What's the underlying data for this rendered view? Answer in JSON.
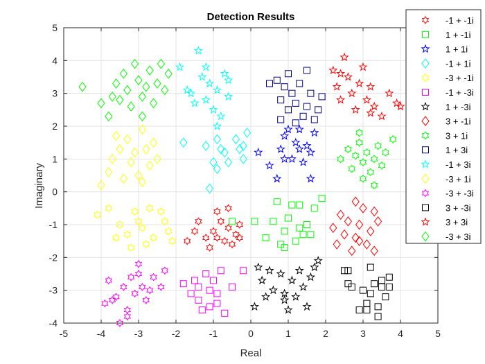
{
  "chart_data": {
    "type": "scatter",
    "title": "Detection Results",
    "xlabel": "Real",
    "ylabel": "Imaginary",
    "xlim": [
      -5,
      5
    ],
    "ylim": [
      -4,
      5
    ],
    "xticks": [
      "-5",
      "-4",
      "-3",
      "-2",
      "-1",
      "0",
      "1",
      "2",
      "3",
      "4",
      "5"
    ],
    "yticks": [
      "-4",
      "-3",
      "-2",
      "-1",
      "0",
      "1",
      "2",
      "3",
      "4",
      "5"
    ],
    "grid": true,
    "legend_position": "top-right",
    "series": [
      {
        "name": "-1 + -1i",
        "color": "#ff0000",
        "marker": "hexagram",
        "points": [
          [
            -1.4,
            -0.9
          ],
          [
            -1.2,
            -1.4
          ],
          [
            -1.0,
            -1.2
          ],
          [
            -0.9,
            -0.6
          ],
          [
            -0.7,
            -1.5
          ],
          [
            -0.6,
            -0.5
          ],
          [
            -0.6,
            -1.1
          ],
          [
            -0.5,
            -1.6
          ],
          [
            -0.4,
            -1.3
          ],
          [
            -0.8,
            -0.9
          ],
          [
            -1.5,
            -1.2
          ],
          [
            -1.7,
            -1.5
          ],
          [
            -0.3,
            -1.0
          ],
          [
            -0.3,
            -1.4
          ],
          [
            -1.1,
            -1.7
          ],
          [
            -0.9,
            -1.4
          ]
        ]
      },
      {
        "name": "1 + -1i",
        "color": "#00ff00",
        "marker": "square",
        "points": [
          [
            -0.5,
            -0.9
          ],
          [
            0.4,
            -1.4
          ],
          [
            0.7,
            -0.3
          ],
          [
            0.9,
            -1.7
          ],
          [
            0.8,
            -1.6
          ],
          [
            1.1,
            -0.4
          ],
          [
            1.3,
            -0.4
          ],
          [
            1.3,
            -1.1
          ],
          [
            1.4,
            -1.3
          ],
          [
            1.5,
            -1.0
          ],
          [
            1.7,
            -0.5
          ],
          [
            1.9,
            -0.2
          ],
          [
            0.1,
            -0.9
          ],
          [
            0.6,
            -0.9
          ],
          [
            1.2,
            -1.5
          ],
          [
            1.0,
            -0.8
          ],
          [
            1.6,
            -1.3
          ],
          [
            0.9,
            -1.2
          ]
        ]
      },
      {
        "name": "1 + 1i",
        "color": "#0000ff",
        "marker": "pentagram",
        "points": [
          [
            0.2,
            1.2
          ],
          [
            0.5,
            0.8
          ],
          [
            0.7,
            0.4
          ],
          [
            0.8,
            1.3
          ],
          [
            0.9,
            1.7
          ],
          [
            1.0,
            1.9
          ],
          [
            1.1,
            1.0
          ],
          [
            1.2,
            1.5
          ],
          [
            1.3,
            1.3
          ],
          [
            1.4,
            0.9
          ],
          [
            1.5,
            1.4
          ],
          [
            1.6,
            0.4
          ],
          [
            1.6,
            1.2
          ],
          [
            1.7,
            1.8
          ],
          [
            0.9,
            1.0
          ],
          [
            1.3,
            1.9
          ]
        ]
      },
      {
        "name": "-1 + 1i",
        "color": "#00ffff",
        "marker": "diamond",
        "points": [
          [
            -1.8,
            1.5
          ],
          [
            -1.2,
            1.4
          ],
          [
            -1.0,
            0.9
          ],
          [
            -0.9,
            0.7
          ],
          [
            -0.8,
            1.3
          ],
          [
            -0.7,
            1.2
          ],
          [
            -0.4,
            1.6
          ],
          [
            -0.3,
            1.3
          ],
          [
            -0.2,
            1.0
          ],
          [
            -0.1,
            1.8
          ],
          [
            -1.1,
            0.1
          ],
          [
            -0.9,
            1.6
          ],
          [
            -0.6,
            0.9
          ],
          [
            -0.2,
            1.4
          ]
        ]
      },
      {
        "name": "-3 + -1i",
        "color": "#ffff00",
        "marker": "hexagon",
        "points": [
          [
            -4.1,
            -0.7
          ],
          [
            -3.8,
            -0.5
          ],
          [
            -3.5,
            -1.0
          ],
          [
            -3.3,
            -1.3
          ],
          [
            -3.2,
            -1.7
          ],
          [
            -3.0,
            -0.9
          ],
          [
            -2.9,
            -1.1
          ],
          [
            -2.7,
            -0.5
          ],
          [
            -2.6,
            -1.4
          ],
          [
            -2.4,
            -0.6
          ],
          [
            -2.2,
            -1.2
          ],
          [
            -2.1,
            -1.5
          ],
          [
            -3.6,
            -1.4
          ],
          [
            -2.8,
            -1.6
          ],
          [
            -2.3,
            -0.9
          ],
          [
            -3.1,
            -0.6
          ]
        ]
      },
      {
        "name": "-1 + -3i",
        "color": "#ff00ff",
        "marker": "square",
        "points": [
          [
            -1.8,
            -2.8
          ],
          [
            -1.6,
            -3.1
          ],
          [
            -1.5,
            -2.7
          ],
          [
            -1.4,
            -3.3
          ],
          [
            -1.3,
            -3.6
          ],
          [
            -1.2,
            -2.5
          ],
          [
            -1.1,
            -3.0
          ],
          [
            -1.0,
            -2.7
          ],
          [
            -0.9,
            -3.4
          ],
          [
            -0.8,
            -2.4
          ],
          [
            -0.7,
            -3.7
          ],
          [
            -0.5,
            -2.9
          ],
          [
            -0.2,
            -2.4
          ],
          [
            -1.4,
            -2.9
          ],
          [
            -0.9,
            -3.1
          ],
          [
            -1.1,
            -3.5
          ]
        ]
      },
      {
        "name": "1 + -3i",
        "color": "#000000",
        "marker": "pentagram",
        "points": [
          [
            0.2,
            -2.3
          ],
          [
            0.3,
            -2.7
          ],
          [
            0.4,
            -3.2
          ],
          [
            0.5,
            -2.4
          ],
          [
            0.6,
            -3.0
          ],
          [
            0.8,
            -2.5
          ],
          [
            0.9,
            -3.1
          ],
          [
            1.0,
            -3.6
          ],
          [
            1.1,
            -2.7
          ],
          [
            1.2,
            -3.2
          ],
          [
            1.3,
            -2.4
          ],
          [
            1.4,
            -2.9
          ],
          [
            1.5,
            -3.5
          ],
          [
            1.6,
            -2.6
          ],
          [
            1.7,
            -2.3
          ],
          [
            0.1,
            -3.5
          ],
          [
            0.9,
            -3.3
          ],
          [
            1.8,
            -2.1
          ]
        ]
      },
      {
        "name": "3 + -1i",
        "color": "#ff0000",
        "marker": "diamond",
        "points": [
          [
            2.2,
            -1.1
          ],
          [
            2.3,
            -1.6
          ],
          [
            2.4,
            -0.7
          ],
          [
            2.5,
            -1.3
          ],
          [
            2.6,
            -0.9
          ],
          [
            2.7,
            -1.8
          ],
          [
            2.8,
            -0.3
          ],
          [
            2.8,
            -1.4
          ],
          [
            2.9,
            -1.0
          ],
          [
            3.0,
            -0.5
          ],
          [
            3.1,
            -1.6
          ],
          [
            3.2,
            -1.2
          ],
          [
            3.3,
            -0.6
          ],
          [
            3.4,
            -0.9
          ],
          [
            3.3,
            -1.8
          ],
          [
            2.9,
            -1.5
          ]
        ]
      },
      {
        "name": "3 + 1i",
        "color": "#00ff00",
        "marker": "hexagon",
        "points": [
          [
            2.4,
            1.0
          ],
          [
            2.6,
            1.3
          ],
          [
            2.7,
            0.7
          ],
          [
            2.8,
            1.1
          ],
          [
            2.9,
            1.5
          ],
          [
            3.0,
            0.9
          ],
          [
            3.1,
            1.2
          ],
          [
            3.2,
            0.6
          ],
          [
            3.3,
            1.0
          ],
          [
            3.4,
            1.4
          ],
          [
            3.5,
            0.8
          ],
          [
            3.6,
            1.2
          ],
          [
            3.8,
            1.6
          ],
          [
            2.9,
            1.8
          ],
          [
            3.3,
            0.2
          ],
          [
            3.0,
            0.4
          ]
        ]
      },
      {
        "name": "1 + 3i",
        "color": "#000080",
        "marker": "square",
        "points": [
          [
            0.5,
            3.3
          ],
          [
            0.7,
            3.4
          ],
          [
            0.8,
            2.8
          ],
          [
            0.9,
            3.2
          ],
          [
            1.0,
            2.5
          ],
          [
            1.1,
            3.0
          ],
          [
            1.2,
            2.7
          ],
          [
            1.3,
            3.3
          ],
          [
            1.4,
            2.3
          ],
          [
            1.5,
            2.6
          ],
          [
            1.6,
            3.0
          ],
          [
            1.7,
            2.2
          ],
          [
            1.8,
            2.5
          ],
          [
            1.9,
            2.9
          ],
          [
            1.0,
            3.6
          ],
          [
            0.8,
            2.2
          ],
          [
            1.5,
            3.7
          ],
          [
            1.2,
            2.1
          ]
        ]
      },
      {
        "name": "-1 + 3i",
        "color": "#00ffff",
        "marker": "pentagram",
        "points": [
          [
            -1.9,
            3.8
          ],
          [
            -1.7,
            3.1
          ],
          [
            -1.5,
            2.7
          ],
          [
            -1.4,
            4.3
          ],
          [
            -1.3,
            3.5
          ],
          [
            -1.2,
            2.8
          ],
          [
            -1.1,
            3.3
          ],
          [
            -1.0,
            2.5
          ],
          [
            -0.9,
            3.1
          ],
          [
            -0.8,
            2.3
          ],
          [
            -0.7,
            3.6
          ],
          [
            -0.6,
            2.9
          ],
          [
            -1.6,
            3.0
          ],
          [
            -0.9,
            2.0
          ],
          [
            -1.2,
            3.8
          ],
          [
            -0.6,
            3.4
          ]
        ]
      },
      {
        "name": "-3 + 1i",
        "color": "#ffff00",
        "marker": "diamond",
        "points": [
          [
            -4.0,
            0.2
          ],
          [
            -3.8,
            0.6
          ],
          [
            -3.7,
            1.0
          ],
          [
            -3.5,
            1.3
          ],
          [
            -3.4,
            0.4
          ],
          [
            -3.3,
            1.6
          ],
          [
            -3.2,
            0.9
          ],
          [
            -3.1,
            1.2
          ],
          [
            -3.0,
            0.5
          ],
          [
            -2.9,
            1.9
          ],
          [
            -2.8,
            1.3
          ],
          [
            -2.7,
            0.8
          ],
          [
            -2.6,
            1.5
          ],
          [
            -3.6,
            1.7
          ],
          [
            -2.9,
            0.3
          ],
          [
            -2.5,
            1.0
          ]
        ]
      },
      {
        "name": "-3 + -3i",
        "color": "#ff00ff",
        "marker": "hexagram",
        "points": [
          [
            -3.9,
            -3.4
          ],
          [
            -3.8,
            -2.7
          ],
          [
            -3.6,
            -3.2
          ],
          [
            -3.5,
            -4.0
          ],
          [
            -3.4,
            -2.9
          ],
          [
            -3.3,
            -3.6
          ],
          [
            -3.2,
            -2.6
          ],
          [
            -3.1,
            -3.1
          ],
          [
            -3.0,
            -2.5
          ],
          [
            -2.9,
            -2.9
          ],
          [
            -2.8,
            -3.3
          ],
          [
            -2.6,
            -2.6
          ],
          [
            -2.4,
            -2.9
          ],
          [
            -2.3,
            -2.4
          ],
          [
            -3.7,
            -3.3
          ],
          [
            -3.0,
            -2.2
          ],
          [
            -2.7,
            -3.0
          ],
          [
            -3.3,
            -3.8
          ]
        ]
      },
      {
        "name": "3 + -3i",
        "color": "#000000",
        "marker": "square",
        "points": [
          [
            2.5,
            -2.4
          ],
          [
            2.6,
            -2.8
          ],
          [
            2.7,
            -2.9
          ],
          [
            2.9,
            -3.6
          ],
          [
            3.0,
            -3.0
          ],
          [
            3.1,
            -3.4
          ],
          [
            3.2,
            -2.3
          ],
          [
            3.2,
            -3.1
          ],
          [
            3.3,
            -2.8
          ],
          [
            3.4,
            -3.5
          ],
          [
            3.5,
            -2.9
          ],
          [
            3.5,
            -2.7
          ],
          [
            3.6,
            -3.2
          ],
          [
            3.7,
            -2.6
          ],
          [
            3.4,
            -3.8
          ],
          [
            3.1,
            -3.6
          ],
          [
            3.7,
            -2.9
          ],
          [
            2.6,
            -2.4
          ]
        ]
      },
      {
        "name": "3 + 3i",
        "color": "#ff0000",
        "marker": "pentagram",
        "points": [
          [
            2.2,
            3.7
          ],
          [
            2.3,
            3.2
          ],
          [
            2.4,
            2.8
          ],
          [
            2.5,
            4.1
          ],
          [
            2.6,
            3.5
          ],
          [
            2.7,
            3.0
          ],
          [
            2.8,
            2.5
          ],
          [
            2.9,
            3.3
          ],
          [
            3.0,
            3.8
          ],
          [
            3.1,
            2.8
          ],
          [
            3.2,
            3.2
          ],
          [
            3.3,
            2.6
          ],
          [
            3.5,
            2.3
          ],
          [
            3.7,
            3.0
          ],
          [
            3.9,
            2.7
          ],
          [
            4.0,
            2.6
          ],
          [
            3.2,
            2.4
          ],
          [
            2.4,
            3.6
          ]
        ]
      },
      {
        "name": "-3 + 3i",
        "color": "#00ff00",
        "marker": "diamond",
        "points": [
          [
            -4.5,
            3.2
          ],
          [
            -4.0,
            2.7
          ],
          [
            -3.7,
            2.9
          ],
          [
            -3.6,
            3.3
          ],
          [
            -3.5,
            2.8
          ],
          [
            -3.4,
            3.6
          ],
          [
            -3.3,
            3.1
          ],
          [
            -3.2,
            2.6
          ],
          [
            -3.1,
            3.9
          ],
          [
            -3.0,
            3.4
          ],
          [
            -2.9,
            2.9
          ],
          [
            -2.8,
            3.2
          ],
          [
            -2.7,
            3.7
          ],
          [
            -2.6,
            2.7
          ],
          [
            -2.5,
            3.3
          ],
          [
            -2.4,
            3.9
          ],
          [
            -2.3,
            3.1
          ],
          [
            -2.2,
            3.6
          ],
          [
            -3.8,
            2.3
          ],
          [
            -2.9,
            2.3
          ]
        ]
      }
    ]
  }
}
